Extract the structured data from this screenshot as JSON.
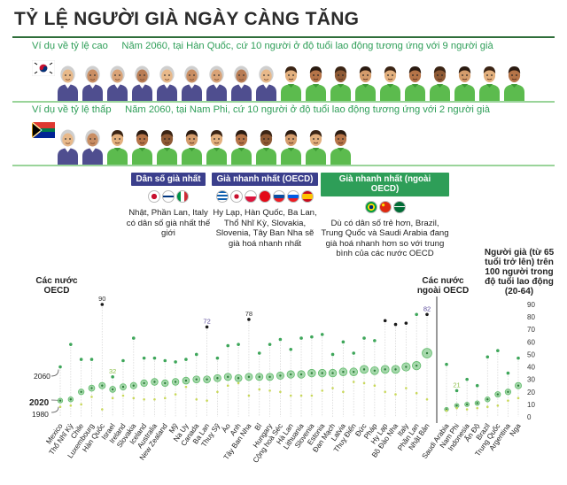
{
  "title": "TỶ LỆ NGƯỜI GIÀ NGÀY CÀNG TĂNG",
  "examples": [
    {
      "label": "Ví dụ về tỷ lệ cao",
      "text": "Năm 2060, tại Hàn Quốc, cứ 10 người ở độ tuổi lao động tương ứng với 9 người già",
      "old_count": 9,
      "young_count": 10,
      "flag": "south-korea-flag"
    },
    {
      "label": "Ví dụ về tỷ lệ thấp",
      "text": "Năm 2060, tại Nam Phi, cứ 10 người ở độ tuổi lao động tương ứng với 2 người già",
      "old_count": 2,
      "young_count": 10,
      "flag": "south-africa-flag"
    }
  ],
  "categories_info": [
    {
      "header": "Dân số già nhất",
      "color": "#3b3f8c",
      "flags": [
        "japan-flag",
        "finland-flag",
        "italy-flag"
      ],
      "text": "Nhật, Phần Lan, Italy có dân số già nhất thế giới"
    },
    {
      "header": "Già nhanh nhất (OECD)",
      "color": "#3b3f8c",
      "flags": [
        "greece-flag",
        "south-korea-flag",
        "poland-flag",
        "turkey-flag",
        "slovakia-flag",
        "slovenia-flag",
        "spain-flag"
      ],
      "text": "Hy Lạp, Hàn Quốc, Ba Lan, Thổ Nhĩ Kỳ, Slovakia, Slovenia, Tây Ban Nha sẽ già hoá nhanh nhất"
    },
    {
      "header": "Già nhanh nhất (ngoài OECD)",
      "color": "#2e9e58",
      "flags": [
        "brazil-flag",
        "china-flag",
        "saudi-arabia-flag"
      ],
      "text": "Dù có dân số trẻ hơn, Brazil, Trung Quốc và Saudi Arabia đang già hoá nhanh hơn so với trung bình của các nước OECD"
    }
  ],
  "chart_labels": {
    "oecd": "Các nước OECD",
    "non_oecd": "Các nước ngoài OECD",
    "ylabel": "Người già (từ 65 tuổi trở lên) trên 100 người trong độ tuổi lao động (20-64)",
    "year_2060": "2060",
    "year_2020": "2020",
    "year_1980": "1980"
  },
  "colors": {
    "green_text": "#2e9e58",
    "navy": "#3b3f8c",
    "dot_2060": "#b9dfb0",
    "dot_2020": "#5fba6a",
    "dot_1980": "#c9d85a",
    "dot_dark": "#1a1a1a",
    "label_purple": "#5a4a9a"
  },
  "chart_data": {
    "type": "scatter",
    "ylabel": "Người già (từ 65 tuổi trở lên) trên 100 người trong độ tuổi lao động (20-64)",
    "ylim": [
      0,
      90
    ],
    "yticks": [
      0,
      10,
      20,
      30,
      40,
      50,
      60,
      70,
      80,
      90
    ],
    "categories": [
      "Mexico",
      "Thổ Nhĩ Kỳ",
      "Chile",
      "Luxembourg",
      "Hàn Quốc",
      "Israel",
      "Ireland",
      "Slovakia",
      "Iceland",
      "Australia",
      "New Zealand",
      "Mỹ",
      "Na Uy",
      "Canada",
      "Ba Lan",
      "Thuỵ Sỹ",
      "Áo",
      "Anh",
      "Tây Ban Nha",
      "Bỉ",
      "Hungary",
      "Cộng hoà Séc",
      "Hà Lan",
      "Lithuania",
      "Slovenia",
      "Estonia",
      "Đan Mạch",
      "Latvia",
      "Thuỵ Điển",
      "Đức",
      "Pháp",
      "Hy Lạp",
      "Bồ Đào Nha",
      "Italy",
      "Phần Lan",
      "Nhật Bản",
      "Saudi Arabia",
      "Nam Phi",
      "Indonesia",
      "Ấn Độ",
      "Brazil",
      "Trung Quốc",
      "Argentina",
      "Nga"
    ],
    "group": [
      "oecd",
      "oecd",
      "oecd",
      "oecd",
      "oecd",
      "oecd",
      "oecd",
      "oecd",
      "oecd",
      "oecd",
      "oecd",
      "oecd",
      "oecd",
      "oecd",
      "oecd",
      "oecd",
      "oecd",
      "oecd",
      "oecd",
      "oecd",
      "oecd",
      "oecd",
      "oecd",
      "oecd",
      "oecd",
      "oecd",
      "oecd",
      "oecd",
      "oecd",
      "oecd",
      "oecd",
      "oecd",
      "oecd",
      "oecd",
      "oecd",
      "oecd",
      "non-oecd",
      "non-oecd",
      "non-oecd",
      "non-oecd",
      "non-oecd",
      "non-oecd",
      "non-oecd",
      "non-oecd"
    ],
    "series": [
      {
        "name": "2060",
        "values": [
          40,
          58,
          46,
          46,
          90,
          32,
          45,
          63,
          47,
          47,
          45,
          44,
          46,
          50,
          72,
          47,
          57,
          58,
          78,
          51,
          58,
          62,
          54,
          63,
          64,
          66,
          50,
          60,
          51,
          63,
          61,
          77,
          74,
          75,
          82,
          82,
          42,
          21,
          30,
          25,
          48,
          53,
          35,
          47
        ]
      },
      {
        "name": "2020",
        "values": [
          13,
          14,
          20,
          23,
          25,
          22,
          24,
          25,
          27,
          28,
          27,
          28,
          29,
          30,
          30,
          31,
          32,
          31,
          32,
          32,
          32,
          33,
          34,
          34,
          35,
          35,
          35,
          36,
          36,
          38,
          37,
          38,
          38,
          40,
          41,
          51,
          6,
          9,
          10,
          11,
          14,
          18,
          20,
          25
        ]
      },
      {
        "name": "1980",
        "values": [
          8,
          9,
          10,
          16,
          6,
          15,
          17,
          15,
          14,
          14,
          15,
          18,
          24,
          14,
          13,
          20,
          25,
          27,
          17,
          22,
          21,
          20,
          17,
          17,
          17,
          21,
          23,
          20,
          28,
          27,
          25,
          20,
          18,
          23,
          19,
          14,
          5,
          7,
          6,
          7,
          8,
          9,
          13,
          15
        ]
      }
    ],
    "labeled_points": [
      {
        "category": "Hàn Quốc",
        "value": 90
      },
      {
        "category": "Israel",
        "value": 32
      },
      {
        "category": "Ba Lan",
        "value": 72
      },
      {
        "category": "Tây Ban Nha",
        "value": 78
      },
      {
        "category": "Nam Phi",
        "value": 21
      },
      {
        "category": "Nhật Bản",
        "value": 82
      }
    ],
    "highlight_dark": [
      "Hàn Quốc",
      "Ba Lan",
      "Tây Ban Nha",
      "Hy Lạp",
      "Bồ Đào Nha",
      "Italy",
      "Nhật Bản"
    ],
    "highlight_purple": [
      "Ba Lan",
      "Nhật Bản"
    ]
  }
}
